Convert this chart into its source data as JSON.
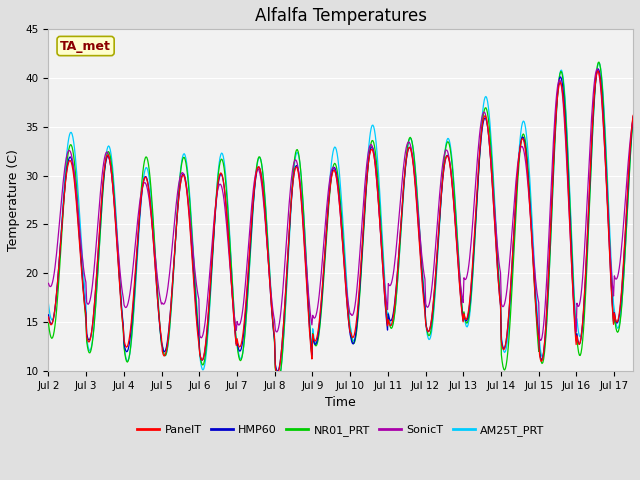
{
  "title": "Alfalfa Temperatures",
  "xlabel": "Time",
  "ylabel": "Temperature (C)",
  "ylim": [
    10,
    45
  ],
  "xlim_start": 1.0,
  "xlim_end": 16.5,
  "annotation_text": "TA_met",
  "annotation_color": "#8B0000",
  "annotation_bg": "#FFFFCC",
  "annotation_border": "#AAAA00",
  "fig_bg": "#E0E0E0",
  "plot_bg": "#F2F2F2",
  "series_colors": {
    "PanelT": "#FF0000",
    "HMP60": "#0000CC",
    "NR01_PRT": "#00CC00",
    "SonicT": "#AA00AA",
    "AM25T_PRT": "#00CCFF"
  },
  "xtick_labels": [
    "Jul 2",
    "Jul 3",
    "Jul 4",
    "Jul 5",
    "Jul 6",
    "Jul 7",
    "Jul 8",
    "Jul 9",
    "Jul 10",
    "Jul 11",
    "Jul 12",
    "Jul 13",
    "Jul 14",
    "Jul 15",
    "Jul 16",
    "Jul 17"
  ],
  "xtick_positions": [
    1,
    2,
    3,
    4,
    5,
    6,
    7,
    8,
    9,
    10,
    11,
    12,
    13,
    14,
    15,
    16
  ],
  "ytick_positions": [
    10,
    15,
    20,
    25,
    30,
    35,
    40,
    45
  ],
  "grid_color": "#FFFFFF",
  "title_fontsize": 12,
  "label_fontsize": 9,
  "tick_fontsize": 7.5,
  "line_width": 0.9
}
